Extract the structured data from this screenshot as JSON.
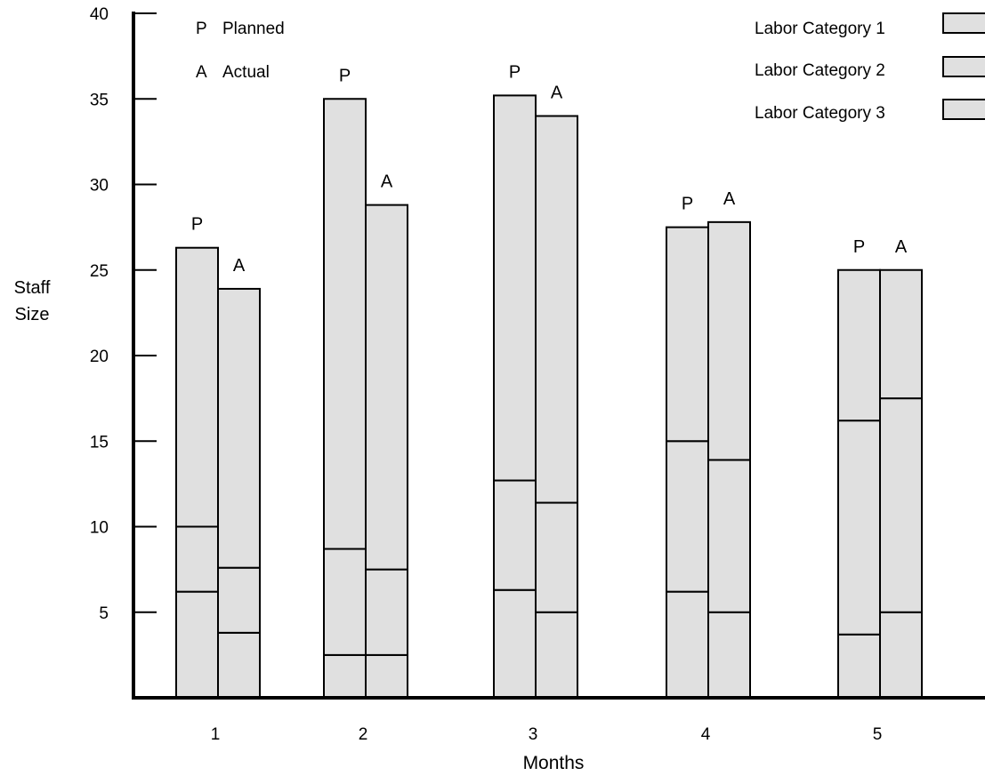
{
  "chart_data": {
    "type": "bar",
    "stacked": true,
    "title": "",
    "xlabel": "Months",
    "ylabel": [
      "Staff",
      "Size"
    ],
    "ylim": [
      0,
      40
    ],
    "yticks": [
      5,
      10,
      15,
      20,
      25,
      30,
      35,
      40
    ],
    "categories": [
      "1",
      "2",
      "3",
      "4",
      "5"
    ],
    "bar_letters": [
      "P",
      "A"
    ],
    "key": [
      {
        "letter": "P",
        "text": "Planned"
      },
      {
        "letter": "A",
        "text": "Actual"
      }
    ],
    "series": [
      {
        "name": "Labor Category 1"
      },
      {
        "name": "Labor Category 2"
      },
      {
        "name": "Labor Category 3"
      }
    ],
    "bars": [
      {
        "month": "1",
        "planned": [
          6.2,
          3.8,
          16.3
        ],
        "actual": [
          3.8,
          3.8,
          16.3
        ]
      },
      {
        "month": "2",
        "planned": [
          2.5,
          6.2,
          26.3
        ],
        "actual": [
          2.5,
          5.0,
          21.3
        ]
      },
      {
        "month": "3",
        "planned": [
          6.3,
          6.4,
          22.5
        ],
        "actual": [
          5.0,
          6.4,
          22.6
        ]
      },
      {
        "month": "4",
        "planned": [
          6.2,
          8.8,
          12.5
        ],
        "actual": [
          5.0,
          8.9,
          13.9
        ]
      },
      {
        "month": "5",
        "planned": [
          3.7,
          12.5,
          8.8
        ],
        "actual": [
          5.0,
          12.5,
          7.5
        ]
      }
    ],
    "bar_fill": "#e0e0e0",
    "line_color": "#000000"
  }
}
